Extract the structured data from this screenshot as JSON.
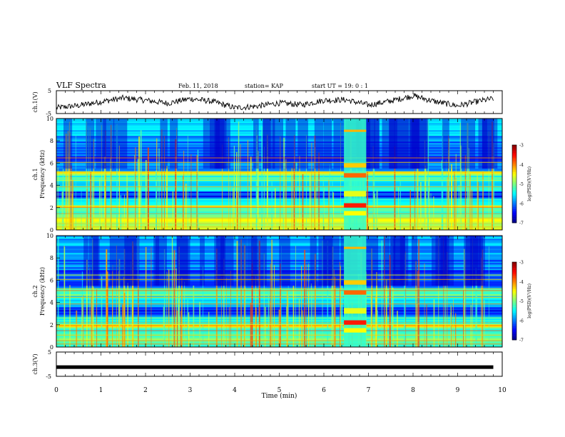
{
  "header": {
    "title": "VLF Spectra",
    "date": "Feb. 11, 2018",
    "station": "station= KAP",
    "start": "start  UT =   19: 0  : 1"
  },
  "chart_data": [
    {
      "type": "line",
      "panel": "waveform-ch1",
      "ylabel": "ch.1(V)",
      "ylim": [
        -5,
        5
      ],
      "yticks": [
        "5",
        "-5"
      ],
      "xlim": [
        0,
        10
      ],
      "x": [
        0.0,
        0.5,
        1.0,
        1.5,
        2.0,
        2.5,
        3.0,
        3.5,
        4.0,
        4.5,
        5.0,
        5.5,
        6.0,
        6.5,
        7.0,
        7.5,
        8.0,
        8.5,
        9.0,
        9.5,
        9.8
      ],
      "y": [
        -2.5,
        -1.5,
        0.2,
        1.8,
        0.8,
        -0.5,
        1.5,
        0.3,
        -2.5,
        -1.8,
        -0.4,
        -1.2,
        0.8,
        1.0,
        -1.3,
        0.5,
        2.8,
        0.2,
        -1.6,
        0.5,
        1.5
      ]
    },
    {
      "type": "heatmap",
      "panel": "spectrogram-ch1",
      "ylabel": "ch.1",
      "ylabel2": "Frequency (kHz)",
      "ylim": [
        0,
        10
      ],
      "yticks": [
        "0",
        "2",
        "4",
        "6",
        "8",
        "10"
      ],
      "xlim": [
        0,
        10
      ],
      "colorbar": {
        "label": "log(PSD)(V²/Hz)",
        "range": [
          -7,
          -3
        ],
        "ticks": [
          "-3",
          "-4",
          "-5",
          "-6",
          "-7"
        ]
      },
      "bands_khz": [
        {
          "f": [
            0.0,
            1.2
          ],
          "level": -4.8
        },
        {
          "f": [
            1.2,
            2.0
          ],
          "level": -5.2
        },
        {
          "f": [
            2.0,
            2.2
          ],
          "level": -4.0
        },
        {
          "f": [
            2.2,
            2.8
          ],
          "level": -5.4
        },
        {
          "f": [
            2.8,
            3.5
          ],
          "level": -6.3
        },
        {
          "f": [
            3.5,
            4.4
          ],
          "level": -5.6
        },
        {
          "f": [
            4.4,
            5.0
          ],
          "level": -5.3
        },
        {
          "f": [
            5.0,
            5.3
          ],
          "level": -4.6
        },
        {
          "f": [
            5.3,
            8.0
          ],
          "level": -6.1
        },
        {
          "f": [
            8.0,
            10.0
          ],
          "level": -5.8
        }
      ],
      "burst_min": [
        6.45,
        6.95
      ]
    },
    {
      "type": "heatmap",
      "panel": "spectrogram-ch2",
      "ylabel": "ch.2",
      "ylabel2": "Frequency (kHz)",
      "ylim": [
        0,
        10
      ],
      "yticks": [
        "0",
        "2",
        "4",
        "6",
        "8",
        "10"
      ],
      "xlim": [
        0,
        10
      ],
      "colorbar": {
        "label": "log(PSD)(V²/Hz)",
        "range": [
          -7,
          -3
        ],
        "ticks": [
          "-3",
          "-4",
          "-5",
          "-6",
          "-7"
        ]
      },
      "bands_khz": [
        {
          "f": [
            0.0,
            1.0
          ],
          "level": -5.0
        },
        {
          "f": [
            1.0,
            1.8
          ],
          "level": -5.3
        },
        {
          "f": [
            1.8,
            2.0
          ],
          "level": -4.2
        },
        {
          "f": [
            2.0,
            2.8
          ],
          "level": -5.5
        },
        {
          "f": [
            2.8,
            3.6
          ],
          "level": -6.3
        },
        {
          "f": [
            3.6,
            4.6
          ],
          "level": -5.6
        },
        {
          "f": [
            4.6,
            5.2
          ],
          "level": -5.2
        },
        {
          "f": [
            5.2,
            8.0
          ],
          "level": -6.1
        },
        {
          "f": [
            8.0,
            10.0
          ],
          "level": -5.8
        }
      ],
      "burst_min": [
        6.45,
        6.95
      ]
    },
    {
      "type": "line",
      "panel": "waveform-ch3",
      "ylabel": "ch.3(V)",
      "ylim": [
        -5,
        5
      ],
      "yticks": [
        "5",
        "-5"
      ],
      "xlim": [
        0,
        10
      ],
      "x": [
        0,
        9.8
      ],
      "y": [
        -1.2,
        -1.2
      ]
    }
  ],
  "xaxis": {
    "label": "Time (min)",
    "ticks": [
      "0",
      "1",
      "2",
      "3",
      "4",
      "5",
      "6",
      "7",
      "8",
      "9",
      "10"
    ]
  }
}
